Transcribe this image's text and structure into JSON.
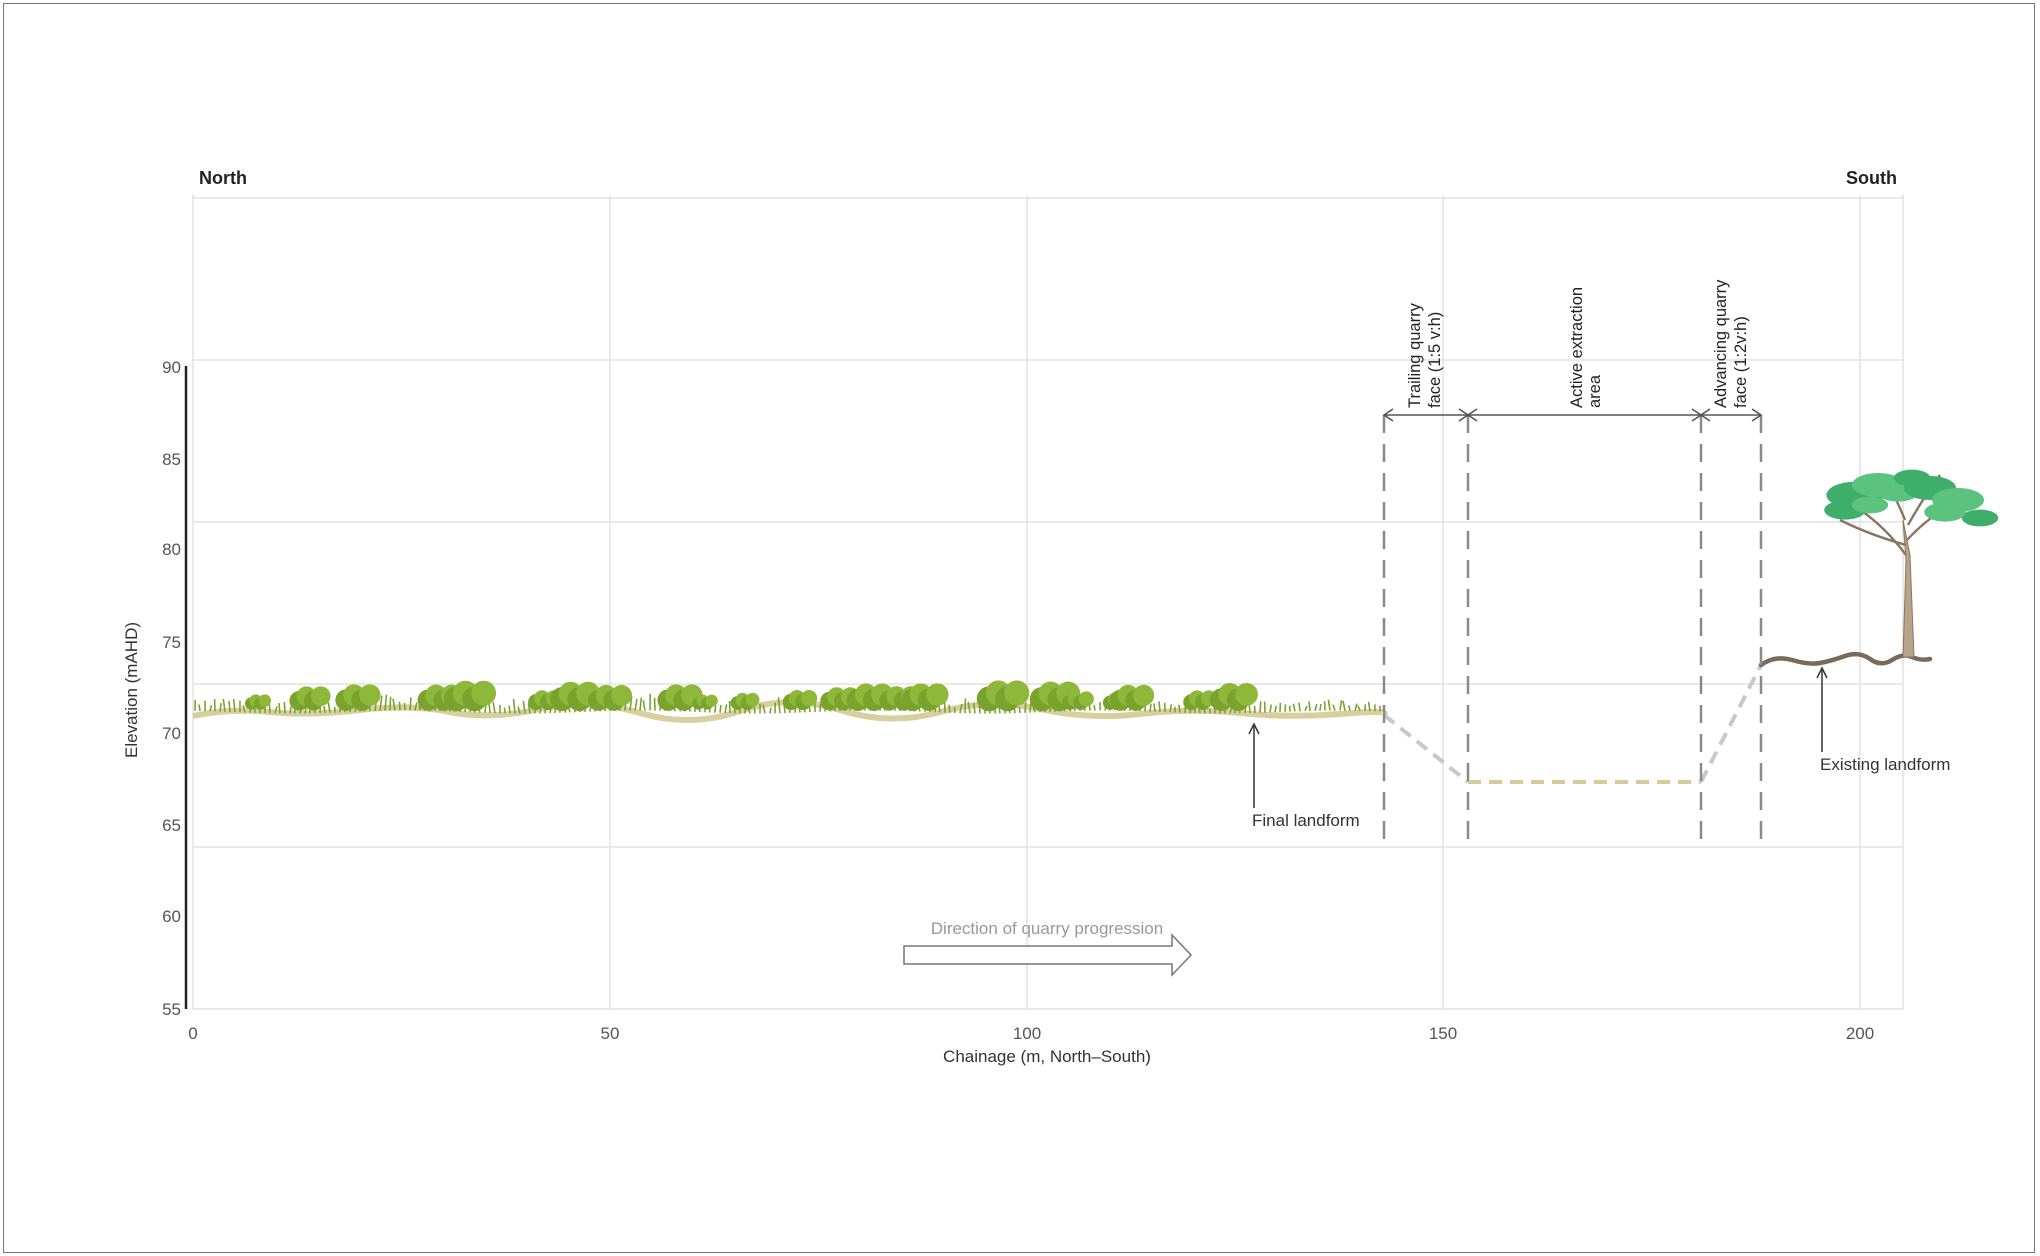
{
  "header": {
    "north": "North",
    "south": "South"
  },
  "axes": {
    "xlabel": "Chainage (m, North–South)",
    "ylabel": "Elevation (mAHD)",
    "x_ticks": [
      "0",
      "50",
      "100",
      "150",
      "200"
    ],
    "y_ticks": [
      "90",
      "85",
      "80",
      "75",
      "70",
      "65",
      "60",
      "55"
    ]
  },
  "zones": {
    "trailing_face": [
      "Trailing quarry",
      "face (1:5 v:h)"
    ],
    "active_area": [
      "Active extraction",
      "area"
    ],
    "advancing_face": [
      "Advancing quarry",
      "face (1:2v:h)"
    ]
  },
  "annotations": {
    "final_landform": "Final landform",
    "existing_landform": "Existing landform",
    "direction": "Direction of quarry progression"
  },
  "colors": {
    "vegetation": "#7aa32e",
    "final_ground": "#d8cfa0",
    "excavation": "#c8c8c8",
    "active_floor": "#d8c89a",
    "existing_ground": "#7a6a5a",
    "tree_foliage": "#3fae6a",
    "tree_trunk": "#8a7660"
  }
}
